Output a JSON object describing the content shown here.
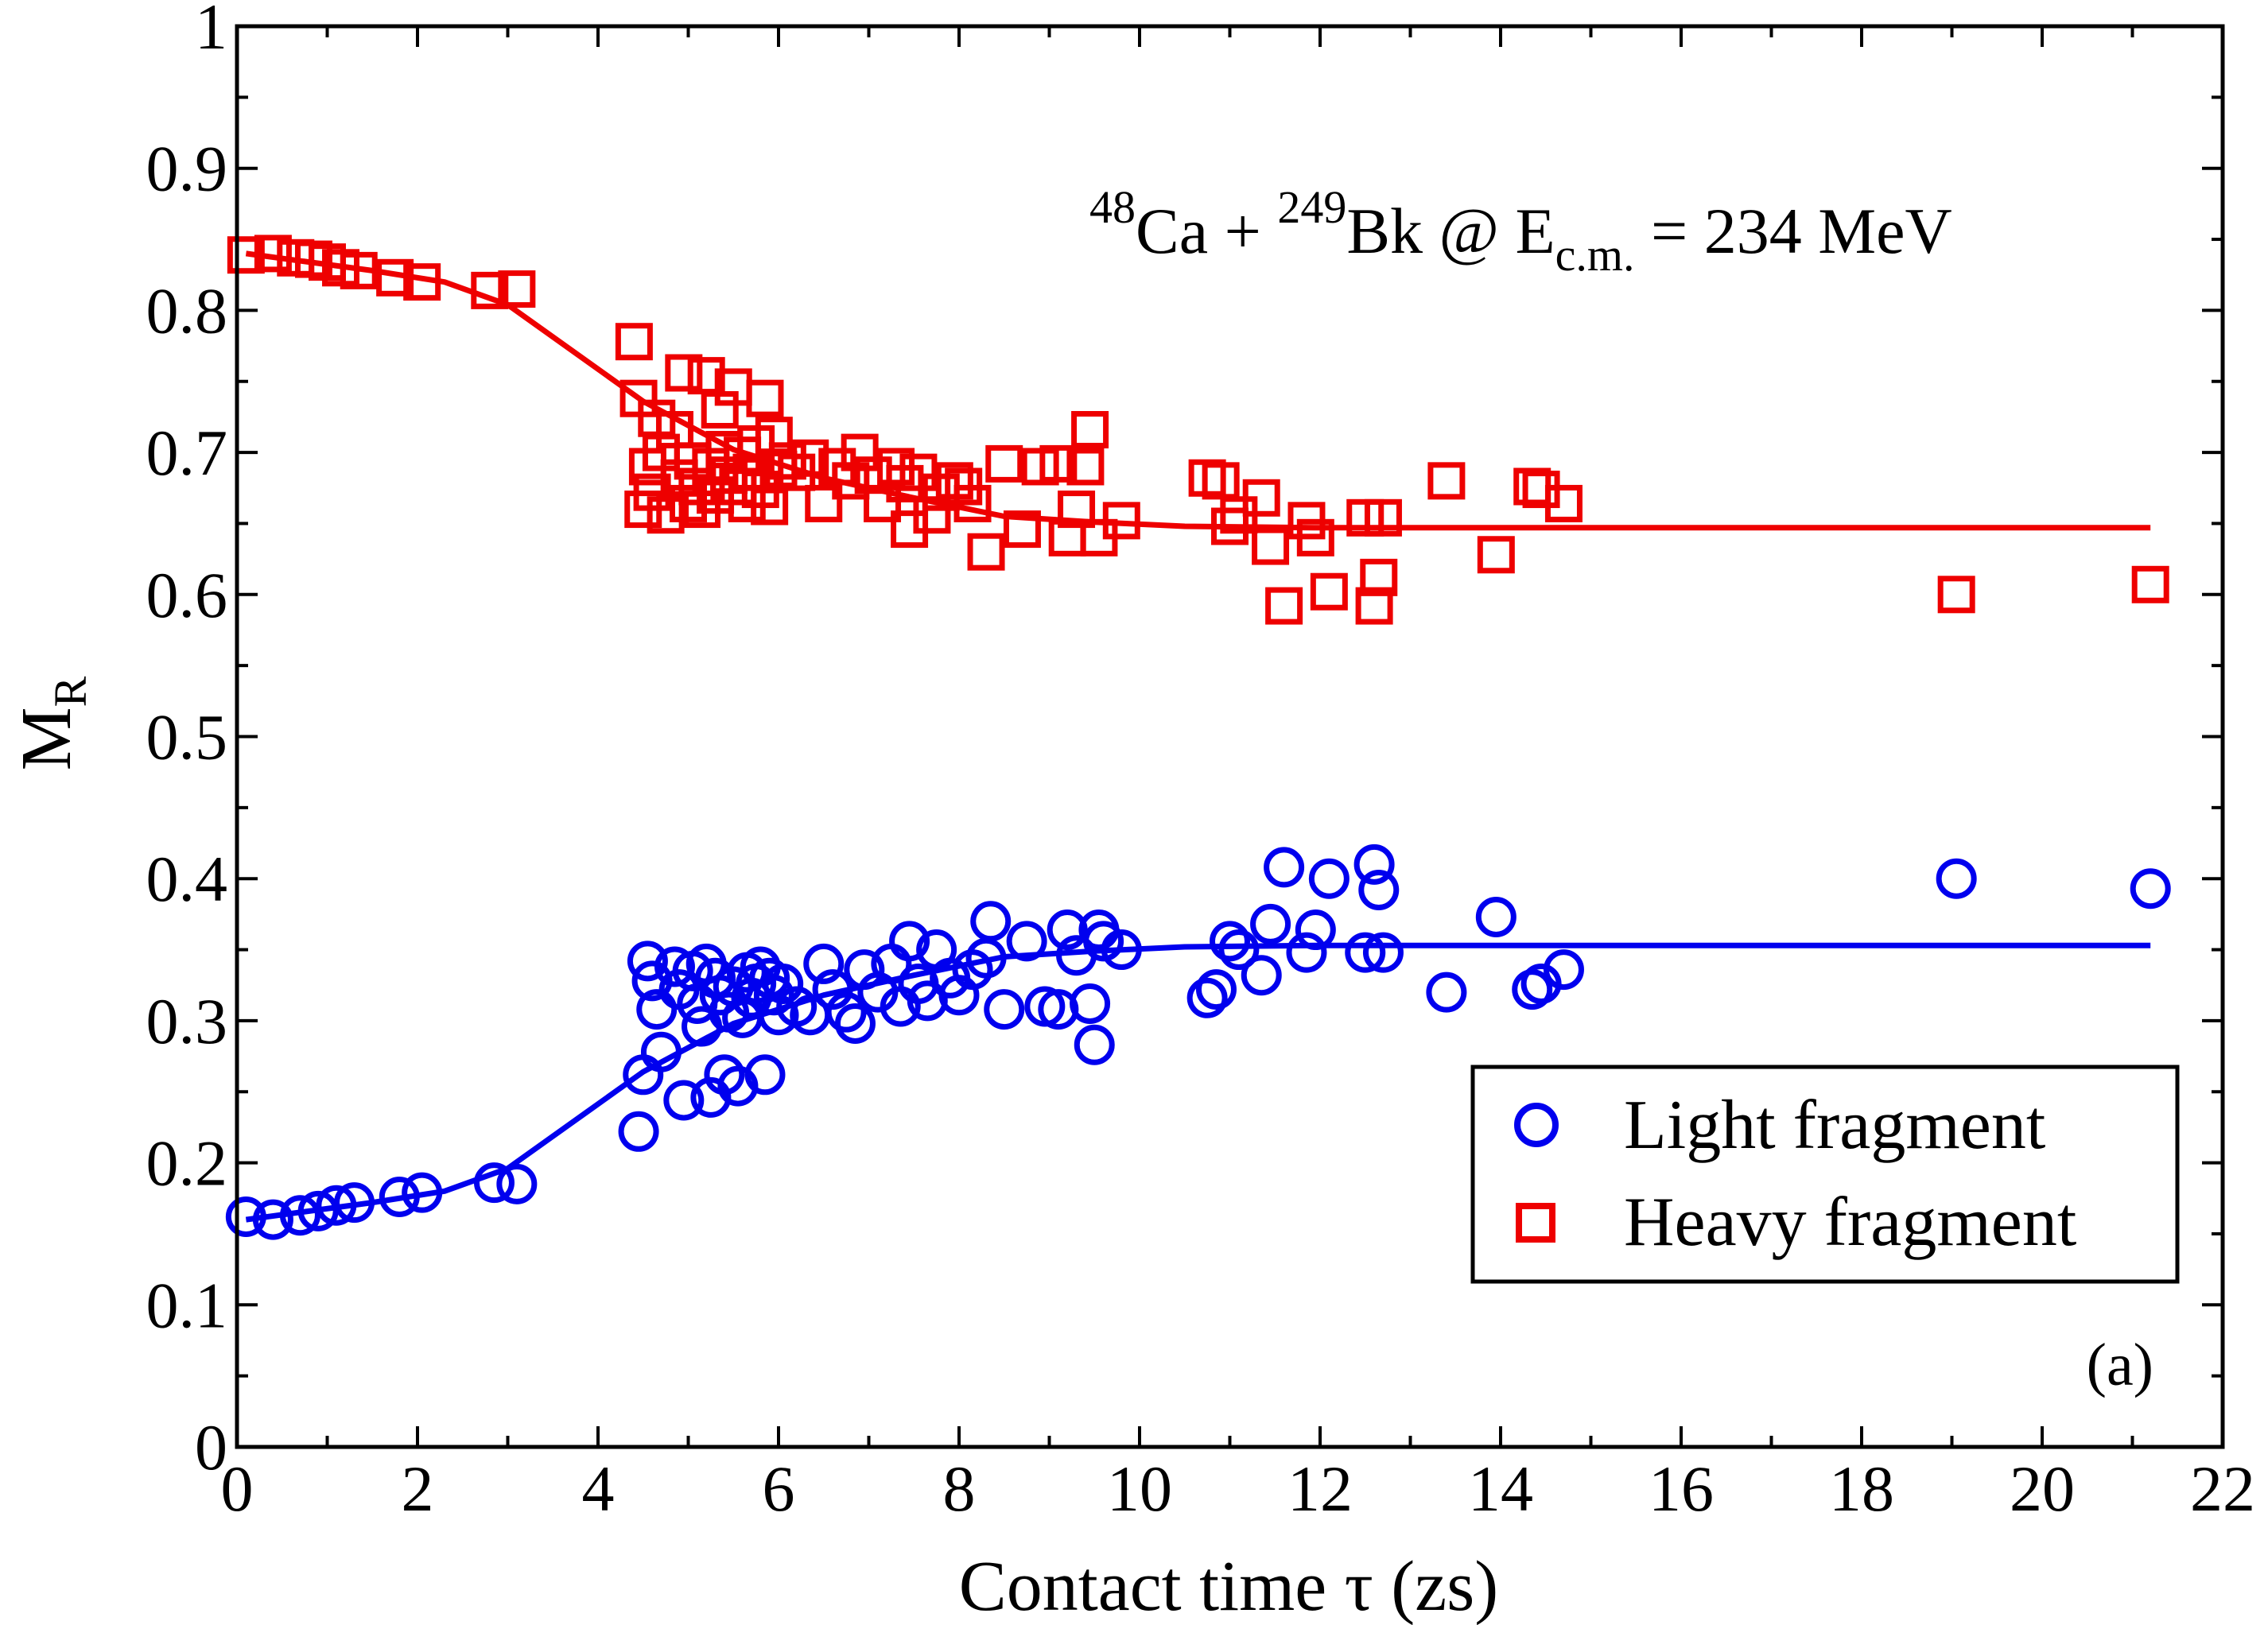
{
  "chart_data": {
    "type": "scatter",
    "title": "",
    "xlabel": "Contact time τ (zs)",
    "ylabel": {
      "base": "M",
      "subscript": "R"
    },
    "xlim": [
      0,
      22
    ],
    "ylim": [
      0,
      1
    ],
    "x_ticks": [
      0,
      2,
      4,
      6,
      8,
      10,
      12,
      14,
      16,
      18,
      20,
      22
    ],
    "x_tick_labels": [
      "0",
      "2",
      "4",
      "6",
      "8",
      "10",
      "12",
      "14",
      "16",
      "18",
      "20",
      "22"
    ],
    "y_ticks": [
      0,
      0.1,
      0.2,
      0.3,
      0.4,
      0.5,
      0.6,
      0.7,
      0.8,
      0.9,
      1
    ],
    "y_tick_labels": [
      "0",
      "0.1",
      "0.2",
      "0.3",
      "0.4",
      "0.5",
      "0.6",
      "0.7",
      "0.8",
      "0.9",
      "1"
    ],
    "annotation": {
      "sup1": "48",
      "text1": "Ca + ",
      "sup2": "249",
      "text2": "Bk @ E",
      "sub": "c.m.",
      "text3": " = 234 MeV"
    },
    "panel_label": "(a)",
    "legend_position": "bottom-right",
    "series": [
      {
        "name": "Light fragment",
        "marker": "circle",
        "color": "#0000ee",
        "points": [
          [
            0.1,
            0.162
          ],
          [
            0.4,
            0.16
          ],
          [
            0.7,
            0.163
          ],
          [
            0.9,
            0.166
          ],
          [
            1.1,
            0.17
          ],
          [
            1.3,
            0.172
          ],
          [
            1.8,
            0.176
          ],
          [
            2.05,
            0.179
          ],
          [
            2.85,
            0.186
          ],
          [
            3.1,
            0.185
          ],
          [
            4.45,
            0.222
          ],
          [
            4.5,
            0.262
          ],
          [
            4.55,
            0.342
          ],
          [
            4.6,
            0.328
          ],
          [
            4.65,
            0.308
          ],
          [
            4.7,
            0.278
          ],
          [
            4.85,
            0.338
          ],
          [
            4.9,
            0.322
          ],
          [
            4.95,
            0.244
          ],
          [
            5.05,
            0.335
          ],
          [
            5.1,
            0.312
          ],
          [
            5.15,
            0.296
          ],
          [
            5.2,
            0.34
          ],
          [
            5.25,
            0.246
          ],
          [
            5.3,
            0.33
          ],
          [
            5.35,
            0.318
          ],
          [
            5.4,
            0.262
          ],
          [
            5.45,
            0.306
          ],
          [
            5.5,
            0.324
          ],
          [
            5.55,
            0.254
          ],
          [
            5.6,
            0.302
          ],
          [
            5.65,
            0.334
          ],
          [
            5.7,
            0.316
          ],
          [
            5.75,
            0.326
          ],
          [
            5.8,
            0.338
          ],
          [
            5.85,
            0.262
          ],
          [
            5.9,
            0.33
          ],
          [
            5.95,
            0.318
          ],
          [
            6.0,
            0.304
          ],
          [
            6.05,
            0.326
          ],
          [
            6.2,
            0.31
          ],
          [
            6.35,
            0.304
          ],
          [
            6.5,
            0.34
          ],
          [
            6.6,
            0.322
          ],
          [
            6.75,
            0.306
          ],
          [
            6.85,
            0.298
          ],
          [
            6.95,
            0.336
          ],
          [
            7.1,
            0.32
          ],
          [
            7.25,
            0.34
          ],
          [
            7.35,
            0.31
          ],
          [
            7.45,
            0.356
          ],
          [
            7.55,
            0.326
          ],
          [
            7.65,
            0.314
          ],
          [
            7.75,
            0.35
          ],
          [
            7.9,
            0.33
          ],
          [
            8.0,
            0.318
          ],
          [
            8.15,
            0.336
          ],
          [
            8.3,
            0.344
          ],
          [
            8.35,
            0.37
          ],
          [
            8.5,
            0.308
          ],
          [
            8.75,
            0.356
          ],
          [
            8.95,
            0.31
          ],
          [
            9.1,
            0.308
          ],
          [
            9.2,
            0.364
          ],
          [
            9.3,
            0.346
          ],
          [
            9.45,
            0.312
          ],
          [
            9.5,
            0.283
          ],
          [
            9.55,
            0.364
          ],
          [
            9.6,
            0.356
          ],
          [
            9.8,
            0.35
          ],
          [
            10.75,
            0.316
          ],
          [
            10.85,
            0.322
          ],
          [
            11.0,
            0.356
          ],
          [
            11.1,
            0.35
          ],
          [
            11.35,
            0.332
          ],
          [
            11.45,
            0.368
          ],
          [
            11.6,
            0.408
          ],
          [
            11.85,
            0.348
          ],
          [
            11.95,
            0.364
          ],
          [
            12.1,
            0.4
          ],
          [
            12.5,
            0.348
          ],
          [
            12.6,
            0.41
          ],
          [
            12.65,
            0.392
          ],
          [
            12.7,
            0.348
          ],
          [
            13.4,
            0.32
          ],
          [
            13.95,
            0.373
          ],
          [
            14.35,
            0.322
          ],
          [
            14.45,
            0.326
          ],
          [
            14.7,
            0.336
          ],
          [
            19.05,
            0.4
          ],
          [
            21.2,
            0.393
          ]
        ],
        "trend": [
          [
            0.1,
            0.16
          ],
          [
            1.5,
            0.172
          ],
          [
            2.3,
            0.18
          ],
          [
            3.0,
            0.196
          ],
          [
            4.5,
            0.264
          ],
          [
            5.5,
            0.298
          ],
          [
            6.5,
            0.318
          ],
          [
            7.5,
            0.332
          ],
          [
            8.5,
            0.345
          ],
          [
            9.5,
            0.349
          ],
          [
            10.5,
            0.352
          ],
          [
            12.0,
            0.353
          ],
          [
            14.0,
            0.353
          ],
          [
            17.0,
            0.353
          ],
          [
            21.2,
            0.353
          ]
        ]
      },
      {
        "name": "Heavy fragment",
        "marker": "square",
        "color": "#ee0000",
        "points": [
          [
            0.1,
            0.839
          ],
          [
            0.4,
            0.84
          ],
          [
            0.65,
            0.837
          ],
          [
            0.85,
            0.836
          ],
          [
            1.0,
            0.834
          ],
          [
            1.15,
            0.83
          ],
          [
            1.35,
            0.828
          ],
          [
            1.75,
            0.823
          ],
          [
            2.05,
            0.82
          ],
          [
            2.8,
            0.814
          ],
          [
            3.1,
            0.815
          ],
          [
            4.4,
            0.778
          ],
          [
            4.45,
            0.738
          ],
          [
            4.5,
            0.66
          ],
          [
            4.55,
            0.69
          ],
          [
            4.6,
            0.672
          ],
          [
            4.65,
            0.724
          ],
          [
            4.7,
            0.7
          ],
          [
            4.75,
            0.656
          ],
          [
            4.85,
            0.716
          ],
          [
            4.9,
            0.682
          ],
          [
            4.95,
            0.756
          ],
          [
            5.0,
            0.664
          ],
          [
            5.05,
            0.694
          ],
          [
            5.1,
            0.676
          ],
          [
            5.15,
            0.66
          ],
          [
            5.2,
            0.754
          ],
          [
            5.25,
            0.69
          ],
          [
            5.3,
            0.67
          ],
          [
            5.35,
            0.73
          ],
          [
            5.4,
            0.702
          ],
          [
            5.45,
            0.684
          ],
          [
            5.5,
            0.746
          ],
          [
            5.55,
            0.676
          ],
          [
            5.6,
            0.698
          ],
          [
            5.65,
            0.664
          ],
          [
            5.7,
            0.686
          ],
          [
            5.75,
            0.706
          ],
          [
            5.8,
            0.674
          ],
          [
            5.85,
            0.738
          ],
          [
            5.9,
            0.662
          ],
          [
            5.95,
            0.712
          ],
          [
            6.0,
            0.688
          ],
          [
            6.1,
            0.694
          ],
          [
            6.2,
            0.686
          ],
          [
            6.35,
            0.696
          ],
          [
            6.5,
            0.664
          ],
          [
            6.65,
            0.69
          ],
          [
            6.8,
            0.68
          ],
          [
            6.9,
            0.7
          ],
          [
            7.05,
            0.684
          ],
          [
            7.15,
            0.664
          ],
          [
            7.3,
            0.69
          ],
          [
            7.4,
            0.678
          ],
          [
            7.45,
            0.646
          ],
          [
            7.55,
            0.686
          ],
          [
            7.7,
            0.656
          ],
          [
            7.8,
            0.672
          ],
          [
            7.95,
            0.68
          ],
          [
            8.05,
            0.676
          ],
          [
            8.15,
            0.664
          ],
          [
            8.3,
            0.63
          ],
          [
            8.5,
            0.692
          ],
          [
            8.7,
            0.646
          ],
          [
            8.9,
            0.69
          ],
          [
            9.1,
            0.692
          ],
          [
            9.2,
            0.64
          ],
          [
            9.3,
            0.66
          ],
          [
            9.4,
            0.69
          ],
          [
            9.45,
            0.716
          ],
          [
            9.55,
            0.64
          ],
          [
            9.8,
            0.652
          ],
          [
            10.75,
            0.682
          ],
          [
            10.9,
            0.68
          ],
          [
            11.0,
            0.648
          ],
          [
            11.1,
            0.656
          ],
          [
            11.35,
            0.668
          ],
          [
            11.45,
            0.634
          ],
          [
            11.6,
            0.592
          ],
          [
            11.85,
            0.652
          ],
          [
            11.95,
            0.64
          ],
          [
            12.1,
            0.602
          ],
          [
            12.5,
            0.654
          ],
          [
            12.6,
            0.592
          ],
          [
            12.65,
            0.612
          ],
          [
            12.7,
            0.654
          ],
          [
            13.4,
            0.68
          ],
          [
            13.95,
            0.628
          ],
          [
            14.35,
            0.676
          ],
          [
            14.45,
            0.674
          ],
          [
            14.7,
            0.664
          ],
          [
            19.05,
            0.6
          ],
          [
            21.2,
            0.607
          ]
        ],
        "trend": [
          [
            0.1,
            0.84
          ],
          [
            1.5,
            0.828
          ],
          [
            2.3,
            0.82
          ],
          [
            3.0,
            0.804
          ],
          [
            4.5,
            0.736
          ],
          [
            5.5,
            0.702
          ],
          [
            6.5,
            0.682
          ],
          [
            7.5,
            0.668
          ],
          [
            8.5,
            0.655
          ],
          [
            9.5,
            0.651
          ],
          [
            10.5,
            0.648
          ],
          [
            12.0,
            0.647
          ],
          [
            14.0,
            0.647
          ],
          [
            17.0,
            0.647
          ],
          [
            21.2,
            0.647
          ]
        ]
      }
    ]
  }
}
